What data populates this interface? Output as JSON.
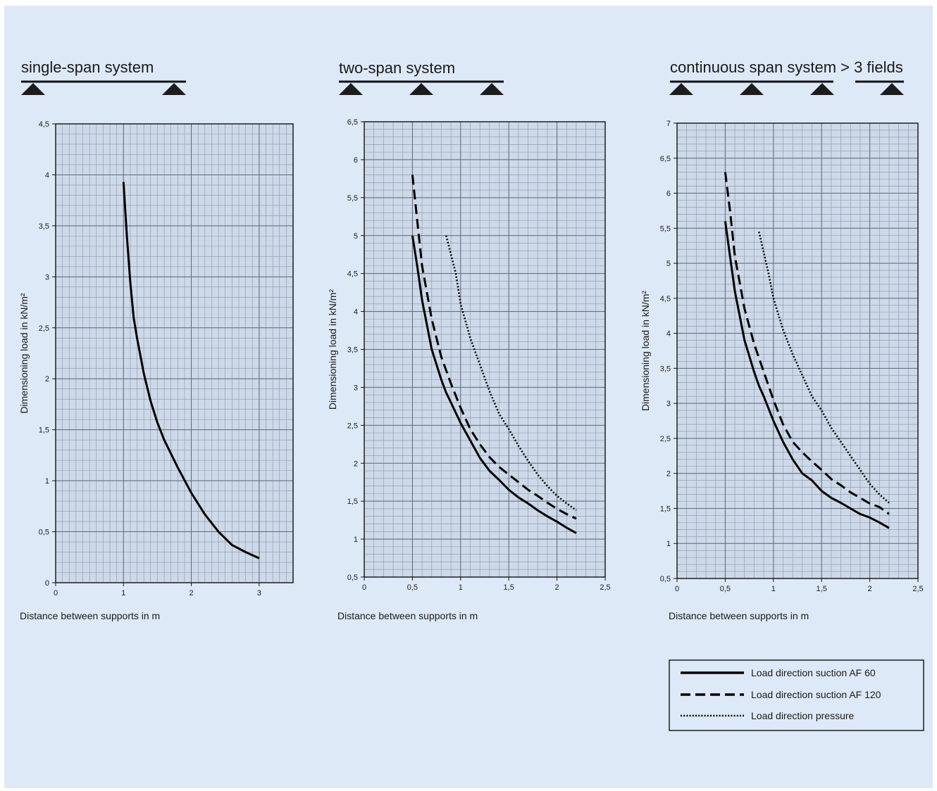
{
  "chart_data": [
    {
      "type": "line",
      "title": "single-span system",
      "xlabel": "Distance between supports in m",
      "ylabel": "Dimensioning load in kN/m²",
      "xlim": [
        0,
        3.5
      ],
      "ylim": [
        0,
        4.5
      ],
      "xticks": [
        0,
        1,
        2,
        3
      ],
      "xtick_labels": [
        "0",
        "1",
        "2",
        "3"
      ],
      "yticks": [
        0,
        0.5,
        1,
        1.5,
        2,
        2.5,
        3,
        3.5,
        4,
        4.5
      ],
      "ytick_labels": [
        "0",
        "0,5",
        "1",
        "1,5",
        "2",
        "2,5",
        "3",
        "3,5",
        "4",
        "4,5"
      ],
      "grid": true,
      "supports": 2,
      "series": [
        {
          "style": "solid",
          "x": [
            1.0,
            1.05,
            1.1,
            1.15,
            1.2,
            1.3,
            1.4,
            1.5,
            1.6,
            1.8,
            2.0,
            2.2,
            2.4,
            2.6,
            2.8,
            3.0
          ],
          "y": [
            3.93,
            3.4,
            2.95,
            2.6,
            2.4,
            2.05,
            1.78,
            1.57,
            1.4,
            1.13,
            0.88,
            0.67,
            0.5,
            0.37,
            0.3,
            0.24
          ]
        }
      ]
    },
    {
      "type": "line",
      "title": "two-span system",
      "xlabel": "Distance between supports in m",
      "ylabel": "Dimensioning load in kN/m²",
      "xlim": [
        0,
        2.5
      ],
      "ylim": [
        0.5,
        6.5
      ],
      "xticks": [
        0,
        0.5,
        1,
        1.5,
        2,
        2.5
      ],
      "xtick_labels": [
        "0",
        "0,5",
        "1",
        "1,5",
        "2",
        "2,5"
      ],
      "yticks": [
        0.5,
        1,
        1.5,
        2,
        2.5,
        3,
        3.5,
        4,
        4.5,
        5,
        5.5,
        6,
        6.5
      ],
      "ytick_labels": [
        "0,5",
        "1",
        "1,5",
        "2",
        "2,5",
        "3",
        "3,5",
        "4",
        "4,5",
        "5",
        "5,5",
        "6",
        "6,5"
      ],
      "grid": true,
      "supports": 3,
      "series": [
        {
          "name": "Load direction suction AF 60",
          "style": "solid",
          "x": [
            0.5,
            0.55,
            0.6,
            0.7,
            0.8,
            0.85,
            0.9,
            1.0,
            1.1,
            1.2,
            1.3,
            1.4,
            1.5,
            1.6,
            1.7,
            1.8,
            1.9,
            2.0,
            2.1,
            2.2
          ],
          "y": [
            5.0,
            4.6,
            4.15,
            3.5,
            3.1,
            2.93,
            2.8,
            2.53,
            2.3,
            2.07,
            1.9,
            1.78,
            1.65,
            1.55,
            1.47,
            1.38,
            1.3,
            1.23,
            1.15,
            1.08
          ]
        },
        {
          "name": "Load direction suction AF 120",
          "style": "dashed",
          "x": [
            0.5,
            0.55,
            0.6,
            0.7,
            0.8,
            0.9,
            1.0,
            1.1,
            1.2,
            1.3,
            1.4,
            1.5,
            1.6,
            1.7,
            1.8,
            1.9,
            2.0,
            2.1,
            2.2
          ],
          "y": [
            5.8,
            5.2,
            4.6,
            3.9,
            3.4,
            3.05,
            2.73,
            2.45,
            2.25,
            2.08,
            1.95,
            1.85,
            1.75,
            1.65,
            1.57,
            1.48,
            1.4,
            1.33,
            1.27
          ]
        },
        {
          "name": "Load direction pressure",
          "style": "dotted",
          "x": [
            0.85,
            0.9,
            0.95,
            1.0,
            1.1,
            1.2,
            1.3,
            1.4,
            1.5,
            1.6,
            1.7,
            1.8,
            1.9,
            2.0,
            2.1,
            2.2
          ],
          "y": [
            5.0,
            4.75,
            4.5,
            4.1,
            3.65,
            3.3,
            2.95,
            2.65,
            2.45,
            2.23,
            2.03,
            1.85,
            1.7,
            1.57,
            1.47,
            1.38
          ]
        }
      ]
    },
    {
      "type": "line",
      "title": "continuous span system > 3 fields",
      "xlabel": "Distance between supports in m",
      "ylabel": "Dimensioning load in kN/m²",
      "xlim": [
        0,
        2.5
      ],
      "ylim": [
        0.5,
        7
      ],
      "xticks": [
        0,
        0.5,
        1,
        1.5,
        2,
        2.5
      ],
      "xtick_labels": [
        "0",
        "0,5",
        "1",
        "1,5",
        "2",
        "2,5"
      ],
      "yticks": [
        0.5,
        1,
        1.5,
        2,
        2.5,
        3,
        3.5,
        4,
        4.5,
        5,
        5.5,
        6,
        6.5,
        7
      ],
      "ytick_labels": [
        "0,5",
        "1",
        "1,5",
        "2",
        "2,5",
        "3",
        "3,5",
        "4",
        "4,5",
        "5",
        "5,5",
        "6",
        "6,5",
        "7"
      ],
      "grid": true,
      "supports": 4,
      "series": [
        {
          "name": "Load direction suction AF 60",
          "style": "solid",
          "x": [
            0.5,
            0.55,
            0.6,
            0.7,
            0.8,
            0.85,
            0.9,
            1.0,
            1.1,
            1.2,
            1.3,
            1.4,
            1.5,
            1.6,
            1.7,
            1.8,
            1.9,
            2.0,
            2.1,
            2.2
          ],
          "y": [
            5.6,
            5.1,
            4.6,
            3.9,
            3.45,
            3.25,
            3.1,
            2.75,
            2.45,
            2.2,
            2.0,
            1.9,
            1.75,
            1.65,
            1.58,
            1.5,
            1.42,
            1.37,
            1.3,
            1.22
          ]
        },
        {
          "name": "Load direction suction AF 120",
          "style": "dashed",
          "x": [
            0.5,
            0.55,
            0.6,
            0.7,
            0.8,
            0.9,
            1.0,
            1.1,
            1.2,
            1.3,
            1.4,
            1.5,
            1.6,
            1.7,
            1.8,
            1.9,
            2.0,
            2.1,
            2.2
          ],
          "y": [
            6.3,
            5.75,
            5.1,
            4.35,
            3.85,
            3.45,
            3.05,
            2.7,
            2.45,
            2.3,
            2.17,
            2.05,
            1.92,
            1.83,
            1.73,
            1.65,
            1.57,
            1.52,
            1.42
          ]
        },
        {
          "name": "Load direction pressure",
          "style": "dotted",
          "x": [
            0.85,
            0.9,
            0.95,
            1.0,
            1.1,
            1.2,
            1.3,
            1.4,
            1.5,
            1.6,
            1.7,
            1.8,
            1.9,
            2.0,
            2.1,
            2.2
          ],
          "y": [
            5.45,
            5.15,
            4.85,
            4.5,
            4.05,
            3.7,
            3.4,
            3.1,
            2.9,
            2.65,
            2.45,
            2.25,
            2.05,
            1.85,
            1.7,
            1.58
          ]
        }
      ]
    }
  ],
  "legend": {
    "items": [
      {
        "label": "Load direction suction AF 60",
        "style": "solid"
      },
      {
        "label": "Load direction suction AF 120",
        "style": "dashed"
      },
      {
        "label": "Load direction pressure",
        "style": "dotted"
      }
    ]
  },
  "colors": {
    "background": "#dde9f6",
    "plot_fill": "#cdd9e8",
    "grid_minor": "#8a96a8",
    "grid_major": "#5d6878",
    "line": "#000000"
  }
}
